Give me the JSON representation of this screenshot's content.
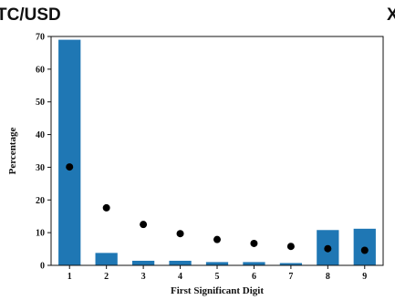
{
  "header": {
    "left_text": "TC/USD",
    "right_text": "X"
  },
  "chart_data": {
    "type": "bar",
    "categories": [
      "1",
      "2",
      "3",
      "4",
      "5",
      "6",
      "7",
      "8",
      "9"
    ],
    "series": [
      {
        "values": [
          69.0,
          3.8,
          1.4,
          1.4,
          1.0,
          1.0,
          0.7,
          10.8,
          11.2
        ]
      },
      {
        "type": "scatter",
        "values": [
          30.1,
          17.6,
          12.5,
          9.7,
          7.9,
          6.7,
          5.8,
          5.1,
          4.6
        ]
      }
    ],
    "xlabel": "First Significant Digit",
    "ylabel": "Percentage",
    "ylim": [
      0,
      70
    ],
    "yticks": [
      0,
      10,
      20,
      30,
      40,
      50,
      60,
      70
    ],
    "grid": false,
    "colors": {
      "bars": "#1f77b4",
      "points": "#000000"
    }
  }
}
